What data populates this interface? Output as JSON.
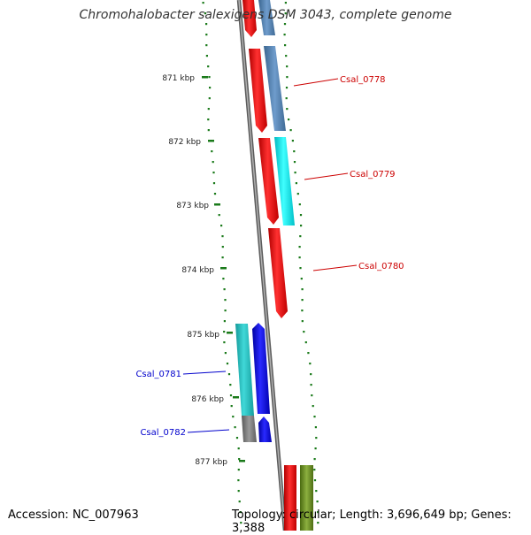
{
  "title": "Chromohalobacter salexigens DSM 3043, complete genome",
  "accession": "Accession: NC_007963",
  "topology": "Topology: circular; Length: 3,696,649 bp; Genes: 3,388",
  "ruler": {
    "ticks": [
      "871 kbp",
      "872 kbp",
      "873 kbp",
      "874 kbp",
      "875 kbp",
      "876 kbp",
      "877 kbp"
    ],
    "color": "#1a7a1a"
  },
  "genes": [
    {
      "label": "Csal_0778",
      "strand": "forward",
      "color": "#cc0000"
    },
    {
      "label": "Csal_0779",
      "strand": "forward",
      "color": "#cc0000"
    },
    {
      "label": "Csal_0780",
      "strand": "forward",
      "color": "#cc0000"
    },
    {
      "label": "Csal_0781",
      "strand": "reverse",
      "color": "#0000cc"
    },
    {
      "label": "Csal_0782",
      "strand": "reverse",
      "color": "#0000cc"
    }
  ],
  "colors": {
    "cds_forward": "#ff0000",
    "cds_reverse": "#0000ff",
    "cog_steelblue": "#4f7fad",
    "cog_cyan": "#00d8e0",
    "cog_teal": "#1fb5b5",
    "cog_gray": "#777777",
    "cog_olive": "#6b8e23",
    "backbone": "#808080"
  }
}
